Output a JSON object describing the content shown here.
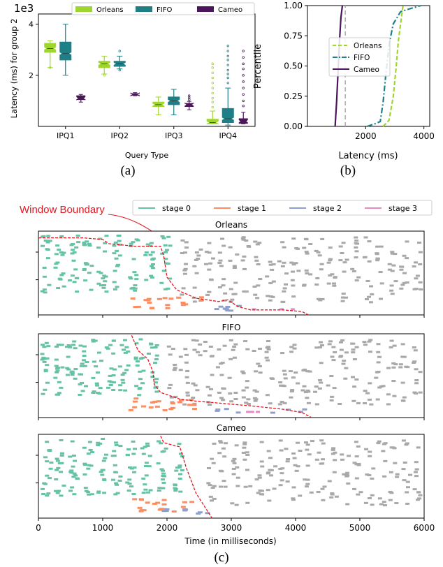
{
  "figure": {
    "captions": [
      "(a)",
      "(b)",
      "(c)"
    ],
    "window_boundary_label": "Window Boundary",
    "colors": {
      "orleans": "#9fd62e",
      "fifo": "#1f7f86",
      "cameo": "#4b145b",
      "stage0": "#66c2a5",
      "stage1": "#fc8d62",
      "stage2": "#8da0cb",
      "stage3": "#e78ac3",
      "stage_gray": "#a8a8a8",
      "boundary": "#e8141e"
    }
  },
  "chart_data": [
    {
      "type": "box",
      "id": "a",
      "ylabel": "Latency (ms) for group 2",
      "y_multiplier": "1e3",
      "xlabel": "Query Type",
      "ylim": [
        0,
        4.4
      ],
      "yticks": [
        2,
        4
      ],
      "categories": [
        "IPQ1",
        "IPQ2",
        "IPQ3",
        "IPQ4"
      ],
      "legend": {
        "position": "top",
        "entries": [
          "Orleans",
          "FIFO",
          "Cameo"
        ]
      },
      "series": [
        {
          "name": "Orleans",
          "color": "#9fd62e",
          "boxes": [
            {
              "whislo": 2.3,
              "q1": 2.9,
              "med": 3.05,
              "q3": 3.25,
              "whishi": 3.35,
              "fliers": [
                2.3
              ]
            },
            {
              "whislo": 2.05,
              "q1": 2.3,
              "med": 2.45,
              "q3": 2.55,
              "whishi": 2.75,
              "fliers": [
                2.0
              ]
            },
            {
              "whislo": 0.45,
              "q1": 0.78,
              "med": 0.85,
              "q3": 0.95,
              "whishi": 1.15,
              "fliers": []
            },
            {
              "whislo": 0.1,
              "q1": 0.1,
              "med": 0.15,
              "q3": 0.28,
              "whishi": 0.6,
              "fliers": [
                0.75,
                0.95,
                1.1,
                1.3,
                1.5,
                1.7,
                1.9,
                2.1,
                2.3,
                2.45
              ]
            }
          ]
        },
        {
          "name": "FIFO",
          "color": "#1f7f86",
          "boxes": [
            {
              "whislo": 2.0,
              "q1": 2.6,
              "med": 2.85,
              "q3": 3.3,
              "whishi": 4.0,
              "fliers": []
            },
            {
              "whislo": 2.25,
              "q1": 2.35,
              "med": 2.45,
              "q3": 2.55,
              "whishi": 2.75,
              "fliers": [
                2.2,
                2.95
              ]
            },
            {
              "whislo": 0.45,
              "q1": 0.85,
              "med": 1.0,
              "q3": 1.15,
              "whishi": 1.45,
              "fliers": []
            },
            {
              "whislo": 0.05,
              "q1": 0.15,
              "med": 0.3,
              "q3": 0.7,
              "whishi": 1.5,
              "fliers": [
                1.7,
                1.9,
                2.05,
                2.2,
                2.4,
                2.6,
                2.75,
                2.95,
                3.15
              ]
            }
          ]
        },
        {
          "name": "Cameo",
          "color": "#4b145b",
          "boxes": [
            {
              "whislo": 0.95,
              "q1": 1.05,
              "med": 1.1,
              "q3": 1.2,
              "whishi": 1.25,
              "fliers": []
            },
            {
              "whislo": 1.2,
              "q1": 1.22,
              "med": 1.25,
              "q3": 1.28,
              "whishi": 1.32,
              "fliers": []
            },
            {
              "whislo": 0.65,
              "q1": 0.78,
              "med": 0.85,
              "q3": 0.9,
              "whishi": 0.98,
              "fliers": [
                1.05,
                1.12,
                1.2
              ]
            },
            {
              "whislo": 0.1,
              "q1": 0.12,
              "med": 0.2,
              "q3": 0.3,
              "whishi": 0.55,
              "fliers": [
                0.8,
                1.0,
                1.25,
                1.5,
                1.75,
                2.0,
                2.25,
                2.45,
                2.7,
                2.95
              ]
            }
          ]
        }
      ]
    },
    {
      "type": "line",
      "id": "b",
      "xlabel": "Latency (ms)",
      "ylabel": "Percentile",
      "xlim": [
        0,
        4200
      ],
      "ylim": [
        0,
        1
      ],
      "xticks": [
        2000,
        4000
      ],
      "yticks": [
        "0.00",
        "0.25",
        "0.50",
        "0.75",
        "1.00"
      ],
      "legend": {
        "position": "upper-left"
      },
      "series": [
        {
          "name": "Orleans",
          "dash": "dash",
          "color": "#9fd62e",
          "x": [
            2600,
            2800,
            2950,
            3050,
            3120,
            3200,
            3280
          ],
          "y": [
            0,
            0.05,
            0.25,
            0.5,
            0.7,
            0.85,
            1.0
          ]
        },
        {
          "name": "FIFO",
          "dash": "dashdot",
          "color": "#1f7f86",
          "x": [
            2050,
            2300,
            2500,
            2600,
            2700,
            2820,
            2950,
            3200,
            3600,
            3900
          ],
          "y": [
            0,
            0.02,
            0.04,
            0.2,
            0.45,
            0.7,
            0.85,
            0.95,
            0.98,
            1.0
          ]
        },
        {
          "name": "Cameo",
          "dash": "solid",
          "color": "#4b145b",
          "x": [
            950,
            1000,
            1050,
            1100,
            1150,
            1200
          ],
          "y": [
            0,
            0.2,
            0.45,
            0.7,
            0.9,
            1.0
          ]
        }
      ],
      "extra_line": {
        "x": 1300,
        "color": "#aaaaaa",
        "dash": "dash"
      }
    },
    {
      "type": "raster",
      "id": "c",
      "xlabel": "Time (in milliseconds)",
      "xlim": [
        0,
        6000
      ],
      "xticks": [
        0,
        1000,
        2000,
        3000,
        4000,
        5000,
        6000
      ],
      "legend": {
        "position": "top",
        "entries": [
          "stage 0",
          "stage 1",
          "stage 2",
          "stage 3"
        ]
      },
      "panels": [
        {
          "title": "Orleans",
          "stage0_columns": [
            100,
            300,
            520,
            740,
            960,
            1200,
            1450,
            1700,
            1950
          ],
          "stage0_end": 2000,
          "stage1_range": [
            1400,
            2600
          ],
          "stage2_range": [
            2700,
            3100
          ],
          "stage3_range": [
            3300,
            4050
          ],
          "gray_end": 5950,
          "boundary": [
            [
              0,
              0.92
            ],
            [
              700,
              0.92
            ],
            [
              1000,
              0.9
            ],
            [
              1100,
              0.85
            ],
            [
              1500,
              0.82
            ],
            [
              1900,
              0.82
            ],
            [
              1950,
              0.7
            ],
            [
              2000,
              0.45
            ],
            [
              2150,
              0.3
            ],
            [
              2450,
              0.2
            ],
            [
              2800,
              0.16
            ],
            [
              2950,
              0.18
            ],
            [
              3100,
              0.1
            ],
            [
              3300,
              0.06
            ],
            [
              3800,
              0.06
            ],
            [
              4100,
              0.04
            ],
            [
              4200,
              0.0
            ]
          ]
        },
        {
          "title": "FIFO",
          "stage0_columns": [
            80,
            280,
            480,
            680,
            880,
            1100,
            1300,
            1550,
            1750
          ],
          "stage0_end": 1800,
          "stage1_range": [
            1400,
            2400
          ],
          "stage2_range": [
            2600,
            4200
          ],
          "stage3_range": [
            3200,
            3400
          ],
          "gray_end": 5950,
          "boundary": [
            [
              1450,
              0.98
            ],
            [
              1550,
              0.8
            ],
            [
              1700,
              0.7
            ],
            [
              1780,
              0.55
            ],
            [
              1800,
              0.4
            ],
            [
              1900,
              0.3
            ],
            [
              2200,
              0.22
            ],
            [
              2400,
              0.2
            ],
            [
              2700,
              0.18
            ],
            [
              3300,
              0.14
            ],
            [
              3800,
              0.1
            ],
            [
              4100,
              0.06
            ],
            [
              4250,
              0.0
            ]
          ]
        },
        {
          "title": "Cameo",
          "stage0_columns": [
            100,
            300,
            520,
            740,
            960,
            1180,
            1400,
            1650,
            1900,
            2150
          ],
          "stage0_end": 2400,
          "stage1_range": [
            1400,
            2400
          ],
          "stage2_range": [
            1900,
            2600
          ],
          "stage3_range": null,
          "gray_end": 5950,
          "boundary": [
            [
              1900,
              0.98
            ],
            [
              1950,
              0.9
            ],
            [
              2200,
              0.85
            ],
            [
              2300,
              0.6
            ],
            [
              2450,
              0.3
            ],
            [
              2600,
              0.12
            ],
            [
              2700,
              0.0
            ]
          ]
        }
      ]
    }
  ]
}
